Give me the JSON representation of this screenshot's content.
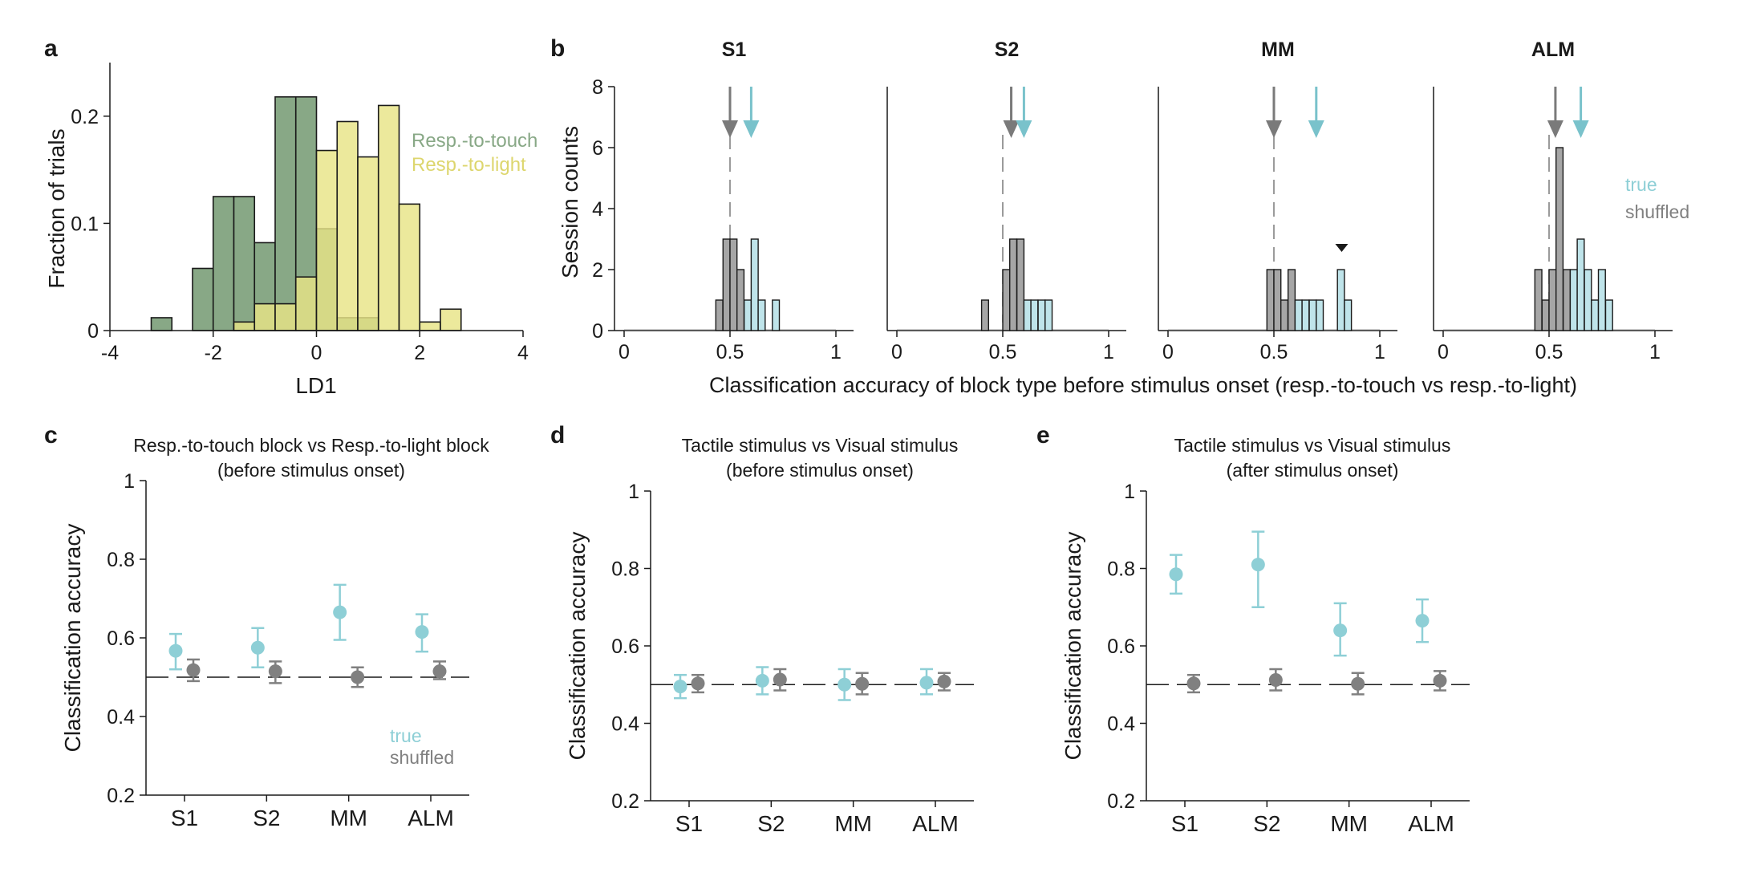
{
  "figure": {
    "panel_labels": [
      "a",
      "b",
      "c",
      "d",
      "e"
    ]
  },
  "chart_data": [
    {
      "type": "histogram",
      "panel": "a",
      "xlabel": "LD1",
      "ylabel": "Fraction of trials",
      "xlim": [
        -4,
        4
      ],
      "ylim": [
        0,
        0.25
      ],
      "xticks": [
        "-4",
        "-2",
        "0",
        "2",
        "4"
      ],
      "yticks": [
        "0",
        "0.1",
        "0.2"
      ],
      "bin_width": 0.4,
      "series": [
        {
          "name": "Resp.-to-touch",
          "color": "#88a886",
          "bins": [
            {
              "x0": -3.2,
              "y": 0.012
            },
            {
              "x0": -2.4,
              "y": 0.058
            },
            {
              "x0": -2.0,
              "y": 0.125
            },
            {
              "x0": -1.6,
              "y": 0.125
            },
            {
              "x0": -1.2,
              "y": 0.082
            },
            {
              "x0": -0.8,
              "y": 0.218
            },
            {
              "x0": -0.4,
              "y": 0.218
            },
            {
              "x0": 0.0,
              "y": 0.095
            },
            {
              "x0": 0.4,
              "y": 0.012
            },
            {
              "x0": 0.8,
              "y": 0.012
            }
          ]
        },
        {
          "name": "Resp.-to-light",
          "color": "#e8e486",
          "bins": [
            {
              "x0": -1.6,
              "y": 0.008
            },
            {
              "x0": -1.2,
              "y": 0.025
            },
            {
              "x0": -0.8,
              "y": 0.025
            },
            {
              "x0": -0.4,
              "y": 0.05
            },
            {
              "x0": 0.0,
              "y": 0.168
            },
            {
              "x0": 0.4,
              "y": 0.195
            },
            {
              "x0": 0.8,
              "y": 0.162
            },
            {
              "x0": 1.2,
              "y": 0.21
            },
            {
              "x0": 1.6,
              "y": 0.118
            },
            {
              "x0": 2.0,
              "y": 0.008
            },
            {
              "x0": 2.4,
              "y": 0.02
            }
          ]
        }
      ]
    },
    {
      "type": "histogram_small_multiples",
      "panel": "b",
      "ylabel": "Session counts",
      "xlabel": "Classification accuracy of block type before stimulus onset (resp.-to-touch vs resp.-to-light)",
      "xlim": [
        0,
        1
      ],
      "ylim": [
        0,
        8
      ],
      "xticks": [
        "0",
        "0.5",
        "1"
      ],
      "yticks": [
        "0",
        "2",
        "4",
        "6",
        "8"
      ],
      "bin_width": 0.033,
      "legend": {
        "true": "true",
        "shuffled": "shuffled",
        "true_color": "#8ecfd6",
        "shuffled_color": "#a6a6a6"
      },
      "subplots": [
        {
          "title": "S1",
          "shuffled_mean": 0.5,
          "true_mean": 0.6,
          "shuffled": [
            {
              "x0": 0.433,
              "y": 1
            },
            {
              "x0": 0.467,
              "y": 3
            },
            {
              "x0": 0.5,
              "y": 3
            },
            {
              "x0": 0.533,
              "y": 2
            }
          ],
          "true": [
            {
              "x0": 0.567,
              "y": 1
            },
            {
              "x0": 0.6,
              "y": 3
            },
            {
              "x0": 0.633,
              "y": 1
            },
            {
              "x0": 0.7,
              "y": 1
            }
          ],
          "chance_line": 0.5
        },
        {
          "title": "S2",
          "shuffled_mean": 0.54,
          "true_mean": 0.6,
          "shuffled": [
            {
              "x0": 0.4,
              "y": 1
            },
            {
              "x0": 0.5,
              "y": 2
            },
            {
              "x0": 0.533,
              "y": 3
            },
            {
              "x0": 0.567,
              "y": 3
            }
          ],
          "true": [
            {
              "x0": 0.6,
              "y": 1
            },
            {
              "x0": 0.633,
              "y": 1
            },
            {
              "x0": 0.667,
              "y": 1
            },
            {
              "x0": 0.7,
              "y": 1
            }
          ],
          "chance_line": 0.5
        },
        {
          "title": "MM",
          "shuffled_mean": 0.5,
          "true_mean": 0.7,
          "shuffled": [
            {
              "x0": 0.467,
              "y": 2
            },
            {
              "x0": 0.5,
              "y": 2
            },
            {
              "x0": 0.533,
              "y": 1
            },
            {
              "x0": 0.567,
              "y": 2
            }
          ],
          "true": [
            {
              "x0": 0.6,
              "y": 1
            },
            {
              "x0": 0.633,
              "y": 1
            },
            {
              "x0": 0.667,
              "y": 1
            },
            {
              "x0": 0.7,
              "y": 1
            },
            {
              "x0": 0.8,
              "y": 2
            },
            {
              "x0": 0.833,
              "y": 1
            }
          ],
          "chance_line": 0.5,
          "marker_x": 0.82
        },
        {
          "title": "ALM",
          "shuffled_mean": 0.53,
          "true_mean": 0.65,
          "shuffled": [
            {
              "x0": 0.433,
              "y": 2
            },
            {
              "x0": 0.467,
              "y": 1
            },
            {
              "x0": 0.5,
              "y": 2
            },
            {
              "x0": 0.533,
              "y": 6
            },
            {
              "x0": 0.567,
              "y": 2
            }
          ],
          "true": [
            {
              "x0": 0.6,
              "y": 2
            },
            {
              "x0": 0.633,
              "y": 3
            },
            {
              "x0": 0.667,
              "y": 2
            },
            {
              "x0": 0.7,
              "y": 1
            },
            {
              "x0": 0.733,
              "y": 2
            },
            {
              "x0": 0.767,
              "y": 1
            }
          ],
          "chance_line": 0.5
        }
      ]
    },
    {
      "type": "errorbar",
      "panel": "c",
      "title_lines": [
        "Resp.-to-touch block vs Resp.-to-light block",
        "(before stimulus onset)"
      ],
      "ylabel": "Classification accuracy",
      "categories": [
        "S1",
        "S2",
        "MM",
        "ALM"
      ],
      "ylim": [
        0.2,
        1
      ],
      "yticks": [
        "0.2",
        "0.4",
        "0.6",
        "0.8",
        "1"
      ],
      "chance_line": 0.5,
      "legend": {
        "true": "true",
        "shuffled": "shuffled"
      },
      "series": [
        {
          "name": "true",
          "color": "#8ecfd6",
          "mean": [
            0.567,
            0.575,
            0.665,
            0.615
          ],
          "lower": [
            0.52,
            0.525,
            0.595,
            0.565
          ],
          "upper": [
            0.61,
            0.625,
            0.735,
            0.66
          ]
        },
        {
          "name": "shuffled",
          "color": "#808080",
          "mean": [
            0.518,
            0.515,
            0.5,
            0.515
          ],
          "lower": [
            0.49,
            0.485,
            0.475,
            0.495
          ],
          "upper": [
            0.545,
            0.54,
            0.525,
            0.54
          ]
        }
      ]
    },
    {
      "type": "errorbar",
      "panel": "d",
      "title_lines": [
        "Tactile stimulus vs Visual stimulus",
        "(before stimulus onset)"
      ],
      "ylabel": "Classification accuracy",
      "categories": [
        "S1",
        "S2",
        "MM",
        "ALM"
      ],
      "ylim": [
        0.2,
        1
      ],
      "yticks": [
        "0.2",
        "0.4",
        "0.6",
        "0.8",
        "1"
      ],
      "chance_line": 0.5,
      "series": [
        {
          "name": "true",
          "color": "#8ecfd6",
          "mean": [
            0.495,
            0.51,
            0.5,
            0.505
          ],
          "lower": [
            0.465,
            0.475,
            0.46,
            0.475
          ],
          "upper": [
            0.525,
            0.545,
            0.54,
            0.54
          ]
        },
        {
          "name": "shuffled",
          "color": "#808080",
          "mean": [
            0.503,
            0.513,
            0.502,
            0.508
          ],
          "lower": [
            0.48,
            0.485,
            0.475,
            0.485
          ],
          "upper": [
            0.525,
            0.54,
            0.53,
            0.53
          ]
        }
      ]
    },
    {
      "type": "errorbar",
      "panel": "e",
      "title_lines": [
        "Tactile stimulus vs Visual stimulus",
        "(after stimulus onset)"
      ],
      "ylabel": "Classification accuracy",
      "categories": [
        "S1",
        "S2",
        "MM",
        "ALM"
      ],
      "ylim": [
        0.2,
        1
      ],
      "yticks": [
        "0.2",
        "0.4",
        "0.6",
        "0.8",
        "1"
      ],
      "chance_line": 0.5,
      "series": [
        {
          "name": "true",
          "color": "#8ecfd6",
          "mean": [
            0.785,
            0.81,
            0.64,
            0.665
          ],
          "lower": [
            0.735,
            0.7,
            0.575,
            0.61
          ],
          "upper": [
            0.835,
            0.895,
            0.71,
            0.72
          ]
        },
        {
          "name": "shuffled",
          "color": "#808080",
          "mean": [
            0.503,
            0.512,
            0.502,
            0.51
          ],
          "lower": [
            0.48,
            0.485,
            0.475,
            0.485
          ],
          "upper": [
            0.525,
            0.54,
            0.53,
            0.535
          ]
        }
      ]
    }
  ]
}
